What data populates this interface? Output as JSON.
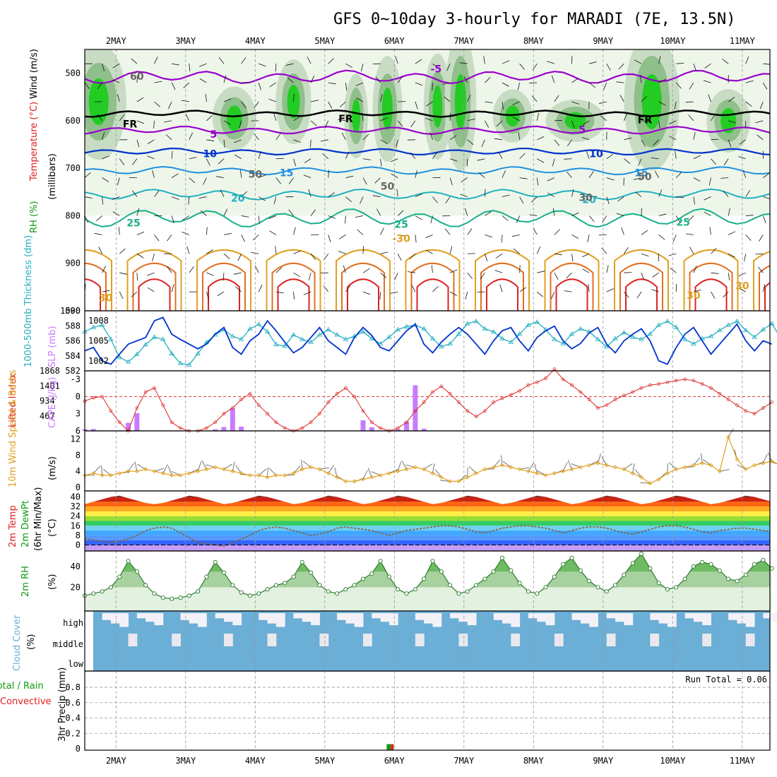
{
  "title": "GFS 0~10day 3-hourly for MARADI (7E, 13.5N)",
  "colors": {
    "magenta": "#9900cc",
    "blue": "#0033cc",
    "ltblue": "#1f8fe0",
    "cyan": "#22b0c0",
    "teal": "#19b08a",
    "orange": "#e0a020",
    "dkorange": "#e07020",
    "red": "#dd2222",
    "green": "#119911",
    "cloud": "#6baed6",
    "cape": "#c77cff"
  },
  "chart_data": {
    "type": "meteogram",
    "x_dates": [
      "2MAY",
      "3MAY",
      "4MAY",
      "5MAY",
      "6MAY",
      "7MAY",
      "8MAY",
      "9MAY",
      "10MAY",
      "11MAY"
    ],
    "panels": [
      {
        "id": "upper",
        "ylabels": [
          "Wind (m/s)",
          "Temperature (°C)",
          "RH (%)",
          "(millibars)"
        ],
        "yticks": [
          "500",
          "600",
          "700",
          "800",
          "900",
          "1000"
        ],
        "contour_labels": [
          "-5",
          "FR",
          "FR",
          "FR",
          "5",
          "5",
          "10",
          "10",
          "15",
          "15",
          "20",
          "20",
          "25",
          "25",
          "25",
          "-30",
          "30",
          "30",
          "30",
          "50",
          "50",
          "50",
          "60",
          "30"
        ]
      },
      {
        "id": "slp",
        "ylabels": [
          "1000-500mb Thickness (dm)",
          "SLP (mb)"
        ],
        "yticks_left": [
          "590",
          "588",
          "586",
          "584",
          "582"
        ],
        "yticks_right": [
          "1008",
          "1005",
          "1002"
        ],
        "slp": [
          1003.5,
          1004,
          1002,
          1001.5,
          1003,
          1004.5,
          1005,
          1005.5,
          1008,
          1008.5,
          1006,
          1005.2,
          1004.5,
          1003.8,
          1004.5,
          1006,
          1007,
          1004,
          1003,
          1005,
          1006,
          1008,
          1006.5,
          1004.8,
          1003.2,
          1004,
          1005.5,
          1007,
          1005,
          1004,
          1003,
          1005.5,
          1007,
          1005.8,
          1004,
          1003.5,
          1005,
          1006.5,
          1007.5,
          1004.5,
          1003.2,
          1004.8,
          1006,
          1007,
          1006,
          1004.5,
          1003,
          1005,
          1006.5,
          1007,
          1005,
          1003.5,
          1005.5,
          1006.5,
          1007.2,
          1005,
          1003.8,
          1004.6,
          1006.2,
          1007,
          1004.5,
          1003.2,
          1005,
          1006,
          1006.8,
          1005,
          1002,
          1001.5,
          1004,
          1006,
          1007,
          1005,
          1003,
          1004.5,
          1006,
          1007.5,
          1005,
          1003.5,
          1005,
          1004.5
        ],
        "thickness": [
          587.2,
          587.8,
          588.1,
          586.2,
          583.8,
          583.2,
          584.2,
          585.5,
          586.5,
          586.2,
          584.3,
          583,
          582.8,
          584.3,
          585.8,
          586.8,
          587.5,
          586.6,
          586.2,
          587.6,
          588.2,
          587.2,
          585.5,
          585.3,
          586.8,
          586.2,
          585.8,
          586.8,
          587.5,
          586.8,
          586.2,
          586.6,
          587.2,
          586.3,
          585.6,
          586.5,
          587.5,
          587.9,
          588.1,
          587.6,
          586.3,
          585.2,
          585.6,
          586.9,
          588.3,
          588.6,
          587.6,
          587.2,
          586.3,
          585.8,
          586.9,
          588.1,
          588.5,
          587.5,
          586.2,
          585.6,
          586.9,
          587.6,
          587.2,
          586.2,
          585.2,
          586.3,
          587.1,
          586.5,
          586.2,
          586.9,
          588.1,
          588.6,
          587.8,
          586.2,
          585.6,
          586.3,
          586.6,
          587.4,
          588.1,
          588.6,
          587.4,
          586.5,
          587.5,
          588.3,
          586.4,
          585.6
        ]
      },
      {
        "id": "cape",
        "ylabels": [
          "Lifted Index",
          "CAPE (J/kg)"
        ],
        "yticks_left": [
          "-3",
          "0",
          "3",
          "6"
        ],
        "yticks_right": [
          "1868",
          "1401",
          "934",
          "467"
        ],
        "cape": [
          50,
          60,
          0,
          0,
          0,
          250,
          550,
          0,
          0,
          0,
          0,
          0,
          0,
          0,
          0,
          50,
          120,
          700,
          130,
          0,
          0,
          0,
          0,
          0,
          0,
          0,
          0,
          0,
          0,
          0,
          0,
          0,
          330,
          110,
          0,
          0,
          50,
          280,
          1420,
          70,
          0,
          0,
          0,
          0,
          0,
          0,
          0,
          0,
          0,
          0,
          0,
          0,
          0,
          0,
          0,
          0,
          0,
          0,
          0,
          0,
          0,
          0,
          0,
          0,
          0,
          0,
          0,
          0,
          0,
          0,
          0,
          0,
          0,
          0,
          0,
          0,
          0,
          0,
          0,
          0
        ],
        "lifted_index": [
          0.8,
          0.2,
          0,
          2.5,
          4.5,
          6,
          2,
          -0.8,
          -1.5,
          1.5,
          4.5,
          5.5,
          6,
          6,
          5.5,
          4.5,
          3,
          2,
          0.5,
          -0.5,
          1.5,
          3,
          4.5,
          5.5,
          6,
          5.5,
          4.5,
          3,
          1,
          -0.5,
          -1.5,
          0,
          2.5,
          4.5,
          5.5,
          6,
          5.5,
          4.5,
          2.5,
          1,
          -0.8,
          -1.8,
          -0.5,
          1,
          2.5,
          3.5,
          2.5,
          1,
          0.3,
          -0.3,
          -1,
          -2,
          -2.5,
          -3.2,
          -4.8,
          -3,
          -2,
          -0.8,
          0.5,
          2,
          1.5,
          0.5,
          -0.2,
          -0.8,
          -1.5,
          -2,
          -2.2,
          -2.5,
          -2.8,
          -3,
          -2.8,
          -2.2,
          -1.5,
          -0.5,
          0.5,
          1.5,
          2.5,
          3,
          2,
          1
        ]
      },
      {
        "id": "wind10",
        "ylabels": [
          "10m Wind Speed & Barbs",
          "(m/s)"
        ],
        "yticks": [
          "12",
          "8",
          "4",
          "0"
        ],
        "speed": [
          3,
          3.5,
          3,
          3,
          3.5,
          4,
          4,
          4.5,
          4,
          3.5,
          3,
          3,
          3.5,
          4,
          4.5,
          5,
          4.5,
          4,
          3.5,
          3,
          3,
          2.5,
          3,
          3,
          3.5,
          4.5,
          5,
          4.5,
          3.5,
          2.5,
          1.5,
          1.5,
          2,
          2.5,
          3,
          3.5,
          4,
          4.5,
          5,
          4.5,
          3.5,
          2.5,
          1.5,
          1.5,
          2.5,
          3.5,
          4.5,
          5,
          5.5,
          5,
          4.5,
          4,
          3.5,
          3,
          3.5,
          4,
          4.5,
          5,
          5.5,
          6,
          5.5,
          5,
          4.5,
          3.5,
          2.5,
          1,
          2,
          3.5,
          4.5,
          5,
          5.5,
          6,
          5.5,
          4,
          12.5,
          7,
          4.5,
          5.5,
          6,
          6.5,
          5.5
        ]
      },
      {
        "id": "t2m",
        "ylabels": [
          "2m Temp",
          "2m DewPt",
          "(6hr Min/Max)",
          "(°C)"
        ],
        "yticks": [
          "40",
          "32",
          "24",
          "16",
          "8",
          "0"
        ],
        "temp": [
          34,
          36,
          38,
          40,
          41,
          39,
          37,
          35,
          34,
          35,
          37,
          39,
          41,
          40,
          38,
          36,
          34,
          35,
          37,
          39,
          41,
          40,
          38,
          36,
          34,
          35,
          37,
          39,
          41,
          40,
          38,
          36,
          34,
          35,
          37,
          39,
          41,
          40,
          38,
          36,
          34,
          35,
          37,
          39,
          41,
          40,
          38,
          36,
          34,
          35,
          37,
          39,
          41,
          40,
          38,
          36,
          34,
          35,
          37,
          39,
          41,
          40,
          38,
          36,
          34,
          35,
          37,
          39,
          41,
          40,
          38,
          36,
          34,
          35,
          37,
          39,
          41,
          40,
          38,
          36
        ],
        "dew": [
          5,
          4,
          3,
          2,
          3,
          5,
          8,
          12,
          14,
          15,
          14,
          10,
          6,
          2,
          1,
          0,
          -1,
          2,
          5,
          8,
          12,
          14,
          15,
          14,
          12,
          10,
          8,
          9,
          11,
          14,
          15,
          14,
          13,
          12,
          10,
          8,
          10,
          12,
          13,
          14,
          15,
          16,
          16,
          15,
          13,
          11,
          10,
          12,
          14,
          15,
          16,
          16,
          15,
          14,
          12,
          10,
          12,
          14,
          15,
          15,
          14,
          12,
          10,
          9,
          11,
          13,
          15,
          16,
          16,
          15,
          13,
          11,
          10,
          12,
          13,
          14,
          14,
          13,
          12,
          11
        ]
      },
      {
        "id": "rh2m",
        "ylabels": [
          "2m RH",
          "(%)"
        ],
        "yticks": [
          "40",
          "20"
        ],
        "rh": [
          12,
          14,
          16,
          20,
          30,
          45,
          35,
          22,
          14,
          10,
          9,
          10,
          12,
          16,
          30,
          44,
          34,
          22,
          15,
          12,
          14,
          18,
          22,
          24,
          30,
          44,
          34,
          22,
          16,
          14,
          18,
          22,
          28,
          33,
          45,
          30,
          18,
          14,
          18,
          28,
          45,
          35,
          22,
          14,
          16,
          22,
          28,
          35,
          48,
          36,
          24,
          16,
          14,
          20,
          30,
          42,
          48,
          36,
          26,
          20,
          16,
          22,
          32,
          43,
          52,
          38,
          24,
          18,
          20,
          28,
          40,
          44,
          42,
          36,
          28,
          26,
          32,
          42,
          46,
          38
        ]
      },
      {
        "id": "cloud",
        "ylabels": [
          "Cloud Cover",
          "(%)"
        ],
        "yticks": [
          "high",
          "middle",
          "low"
        ]
      },
      {
        "id": "precip",
        "ylabels": [
          "Total / Rain",
          "Convective",
          "3hr Precip (mm)"
        ],
        "yticks": [
          "0.8",
          "0.6",
          "0.4",
          "0.2",
          "0"
        ],
        "run_total_label": "Run Total = 0.06",
        "bar_at_day": 5.95,
        "bar_value": 0.06
      }
    ]
  }
}
